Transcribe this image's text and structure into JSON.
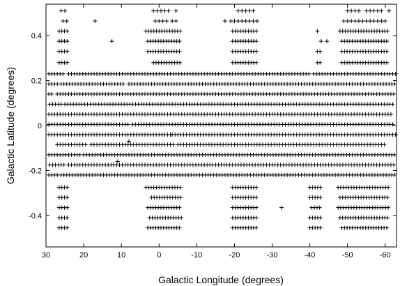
{
  "chart_data": {
    "type": "scatter",
    "title": "",
    "xlabel": "Galactic Longitude (degrees)",
    "ylabel": "Galactic Latitude (degrees)",
    "xlim": [
      30,
      -63
    ],
    "ylim": [
      -0.54,
      0.54
    ],
    "x_reversed": true,
    "x_ticks": [
      "30",
      "20",
      "10",
      "0",
      "-10",
      "-20",
      "-30",
      "-40",
      "-50",
      "-60"
    ],
    "y_ticks": [
      "0.4",
      "0.2",
      "0",
      "-0.2",
      "-0.4"
    ],
    "marker": "plus",
    "marker_color": "#000000",
    "grid": false,
    "legend": "none",
    "rows": [
      {
        "b": 0.51,
        "segments": [
          [
            26.0,
            25.0
          ],
          [
            1.5,
            -2.5
          ],
          [
            -4.5,
            -4.5
          ],
          [
            -21.0,
            -25.0
          ],
          [
            -50.0,
            -53.0
          ],
          [
            -55.0,
            -59.0
          ],
          [
            -61.0,
            -61.0
          ]
        ],
        "step": 1.0
      },
      {
        "b": 0.465,
        "segments": [
          [
            17.0,
            17.0
          ],
          [
            25.5,
            24.5
          ],
          [
            1.0,
            -2.0
          ],
          [
            -3.5,
            -5.0
          ],
          [
            -17.5,
            -17.5
          ],
          [
            -19.0,
            -26.0
          ],
          [
            -49.0,
            -60.0
          ]
        ],
        "step": 1.0
      },
      {
        "b": 0.42,
        "segments": [
          [
            26.5,
            24.0
          ],
          [
            3.5,
            -6.0
          ],
          [
            -19.5,
            -26.0
          ],
          [
            -42.0,
            -42.0
          ],
          [
            -48.0,
            -61.0
          ]
        ],
        "step": 0.7
      },
      {
        "b": 0.375,
        "segments": [
          [
            26.5,
            24.0
          ],
          [
            12.5,
            12.5
          ],
          [
            3.0,
            -6.0
          ],
          [
            -19.5,
            -26.0
          ],
          [
            -43.0,
            -43.0
          ],
          [
            -44.5,
            -44.5
          ],
          [
            -48.5,
            -61.0
          ]
        ],
        "step": 0.7
      },
      {
        "b": 0.33,
        "segments": [
          [
            26.5,
            24.0
          ],
          [
            3.0,
            -6.0
          ],
          [
            -19.5,
            -26.0
          ],
          [
            -42.0,
            -43.0
          ],
          [
            -48.5,
            -61.0
          ]
        ],
        "step": 0.7
      },
      {
        "b": 0.28,
        "segments": [
          [
            26.5,
            24.0
          ],
          [
            1.5,
            -6.0
          ],
          [
            -19.5,
            -26.0
          ],
          [
            -42.0,
            -43.0
          ],
          [
            -48.5,
            -61.0
          ]
        ],
        "step": 0.7
      },
      {
        "b": 0.23,
        "segments": [
          [
            30.0,
            25.0
          ],
          [
            24.0,
            -40.0
          ],
          [
            -41.0,
            -63.0
          ]
        ],
        "step": 0.75
      },
      {
        "b": 0.185,
        "segments": [
          [
            30.0,
            27.0
          ],
          [
            26.0,
            9.0
          ],
          [
            8.0,
            -63.0
          ]
        ],
        "step": 0.75
      },
      {
        "b": 0.14,
        "segments": [
          [
            30.0,
            28.0
          ],
          [
            27.0,
            -63.0
          ]
        ],
        "step": 0.75
      },
      {
        "b": 0.095,
        "segments": [
          [
            29.0,
            26.0
          ],
          [
            25.0,
            -62.5
          ]
        ],
        "step": 0.75
      },
      {
        "b": 0.05,
        "segments": [
          [
            30.0,
            -62.0
          ]
        ],
        "step": 0.75
      },
      {
        "b": 0.005,
        "segments": [
          [
            30.0,
            8.0
          ],
          [
            7.0,
            -62.5
          ]
        ],
        "step": 0.75
      },
      {
        "b": -0.04,
        "segments": [
          [
            30.0,
            -3.0
          ],
          [
            -3.5,
            -63.0
          ]
        ],
        "step": 0.75
      },
      {
        "b": -0.085,
        "segments": [
          [
            27.0,
            19.0
          ],
          [
            18.0,
            -4.0
          ],
          [
            -5.0,
            -60.0
          ]
        ],
        "step": 0.75
      },
      {
        "b": -0.13,
        "segments": [
          [
            30.0,
            21.0
          ],
          [
            20.0,
            -63.0
          ]
        ],
        "step": 0.75
      },
      {
        "b": -0.175,
        "segments": [
          [
            29.0,
            25.0
          ],
          [
            24.0,
            -63.0
          ]
        ],
        "step": 0.75
      },
      {
        "b": -0.22,
        "segments": [
          [
            30.0,
            27.0
          ],
          [
            26.0,
            -63.0
          ]
        ],
        "step": 0.75
      },
      {
        "b": -0.275,
        "segments": [
          [
            26.5,
            24.0
          ],
          [
            3.5,
            -6.0
          ],
          [
            -19.5,
            -26.0
          ],
          [
            -40.0,
            -43.0
          ],
          [
            -47.5,
            -61.0
          ]
        ],
        "step": 0.7
      },
      {
        "b": -0.32,
        "segments": [
          [
            26.5,
            24.0
          ],
          [
            2.0,
            -6.0
          ],
          [
            -19.5,
            -26.0
          ],
          [
            -40.0,
            -43.0
          ],
          [
            -48.0,
            -61.0
          ]
        ],
        "step": 0.7
      },
      {
        "b": -0.365,
        "segments": [
          [
            26.5,
            24.0
          ],
          [
            3.0,
            -6.0
          ],
          [
            -19.5,
            -26.0
          ],
          [
            -32.5,
            -32.5
          ],
          [
            -40.5,
            -43.0
          ],
          [
            -47.5,
            -61.0
          ]
        ],
        "step": 0.7
      },
      {
        "b": -0.41,
        "segments": [
          [
            26.5,
            24.0
          ],
          [
            2.5,
            -6.0
          ],
          [
            -19.5,
            -26.0
          ],
          [
            -40.0,
            -43.0
          ],
          [
            -48.0,
            -61.0
          ]
        ],
        "step": 0.7
      },
      {
        "b": -0.455,
        "segments": [
          [
            26.5,
            24.0
          ],
          [
            3.0,
            -6.0
          ],
          [
            -19.5,
            -26.0
          ],
          [
            -40.0,
            -43.0
          ],
          [
            -48.5,
            -61.0
          ]
        ],
        "step": 0.7
      }
    ],
    "extra_points": [
      [
        8.0,
        -0.07
      ],
      [
        11.0,
        -0.16
      ]
    ]
  }
}
